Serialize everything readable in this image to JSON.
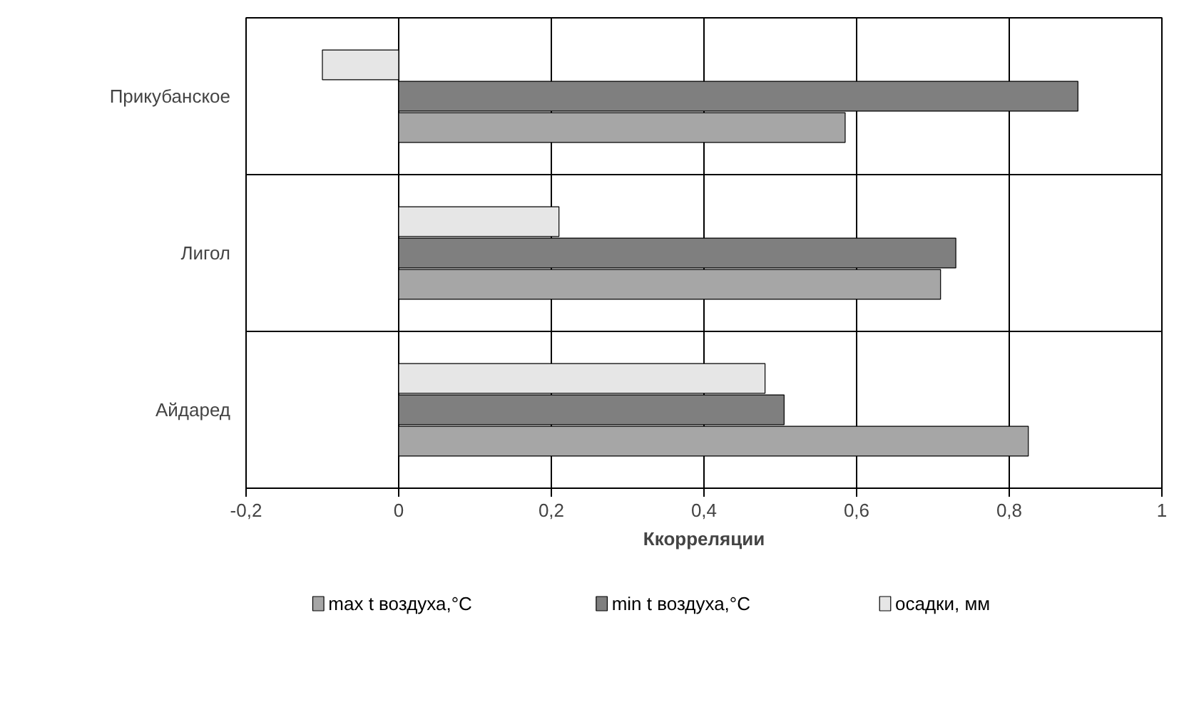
{
  "chart_data": {
    "type": "bar",
    "orientation": "horizontal",
    "xlabel": "Ккорреляции",
    "categories": [
      "Прикубанское",
      "Лигол",
      "Айдаред"
    ],
    "series": [
      {
        "name": "max t воздуха,°C",
        "color": "#a6a6a6",
        "values": [
          0.585,
          0.71,
          0.825
        ]
      },
      {
        "name": "min t воздуха,°C",
        "color": "#7f7f7f",
        "values": [
          0.89,
          0.73,
          0.505
        ]
      },
      {
        "name": "осадки, мм",
        "color": "#e6e6e6",
        "values": [
          -0.1,
          0.21,
          0.48
        ]
      }
    ],
    "xlim": [
      -0.2,
      1
    ],
    "xticks": [
      {
        "value": -0.2,
        "label": "-0,2"
      },
      0,
      {
        "value": 0.2,
        "label": "0,2"
      },
      {
        "value": 0.4,
        "label": "0,4"
      },
      {
        "value": 0.6,
        "label": "0,6"
      },
      {
        "value": 0.8,
        "label": "0,8"
      },
      1
    ],
    "grid": true,
    "legend": "bottom"
  }
}
